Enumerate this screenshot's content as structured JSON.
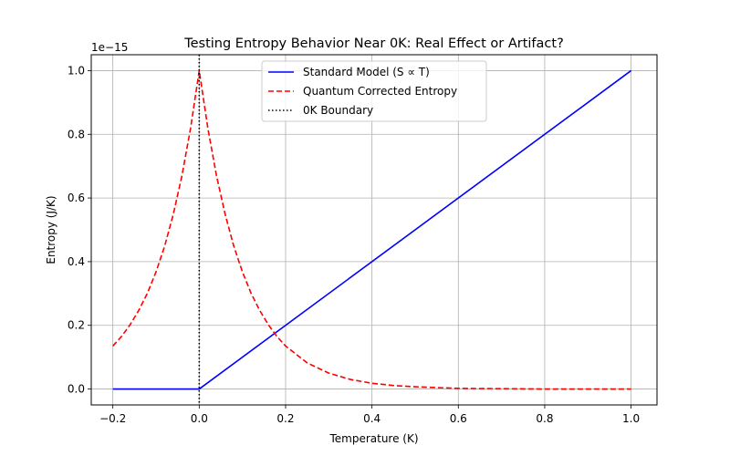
{
  "chart_data": {
    "type": "line",
    "title": "Testing Entropy Behavior Near 0K: Real Effect or Artifact?",
    "xlabel": "Temperature (K)",
    "ylabel": "Entropy (J/K)",
    "y_offset_label": "1e−15",
    "xlim": [
      -0.25,
      1.06
    ],
    "ylim": [
      -0.05,
      1.05
    ],
    "x_ticks": [
      -0.2,
      0.0,
      0.2,
      0.4,
      0.6,
      0.8,
      1.0
    ],
    "x_tick_labels": [
      "−0.2",
      "0.0",
      "0.2",
      "0.4",
      "0.6",
      "0.8",
      "1.0"
    ],
    "y_ticks": [
      0.0,
      0.2,
      0.4,
      0.6,
      0.8,
      1.0
    ],
    "y_tick_labels": [
      "0.0",
      "0.2",
      "0.4",
      "0.6",
      "0.8",
      "1.0"
    ],
    "grid": true,
    "legend_position": "top-center",
    "series": [
      {
        "name": "Standard Model (S ∝ T)",
        "color": "#0000ff",
        "style": "solid",
        "x": [
          -0.2,
          0.0,
          1.0
        ],
        "y": [
          0.0,
          0.0,
          1.0
        ]
      },
      {
        "name": "Quantum Corrected Entropy",
        "color": "#ff0000",
        "style": "dashed",
        "x": [
          -0.2,
          -0.18,
          -0.16,
          -0.14,
          -0.12,
          -0.1,
          -0.08,
          -0.06,
          -0.04,
          -0.02,
          0.0,
          0.02,
          0.04,
          0.06,
          0.08,
          0.1,
          0.12,
          0.14,
          0.16,
          0.18,
          0.2,
          0.25,
          0.3,
          0.35,
          0.4,
          0.45,
          0.5,
          0.6,
          0.7,
          0.8,
          0.9,
          1.0
        ],
        "y": [
          0.135,
          0.165,
          0.202,
          0.247,
          0.301,
          0.368,
          0.449,
          0.549,
          0.67,
          0.819,
          1.0,
          0.819,
          0.67,
          0.549,
          0.449,
          0.368,
          0.301,
          0.247,
          0.202,
          0.165,
          0.135,
          0.082,
          0.05,
          0.03,
          0.018,
          0.011,
          0.007,
          0.002,
          0.001,
          0.0,
          0.0,
          0.0
        ]
      },
      {
        "name": "0K Boundary",
        "color": "#000000",
        "style": "dotted",
        "vline_x": 0.0
      }
    ]
  }
}
